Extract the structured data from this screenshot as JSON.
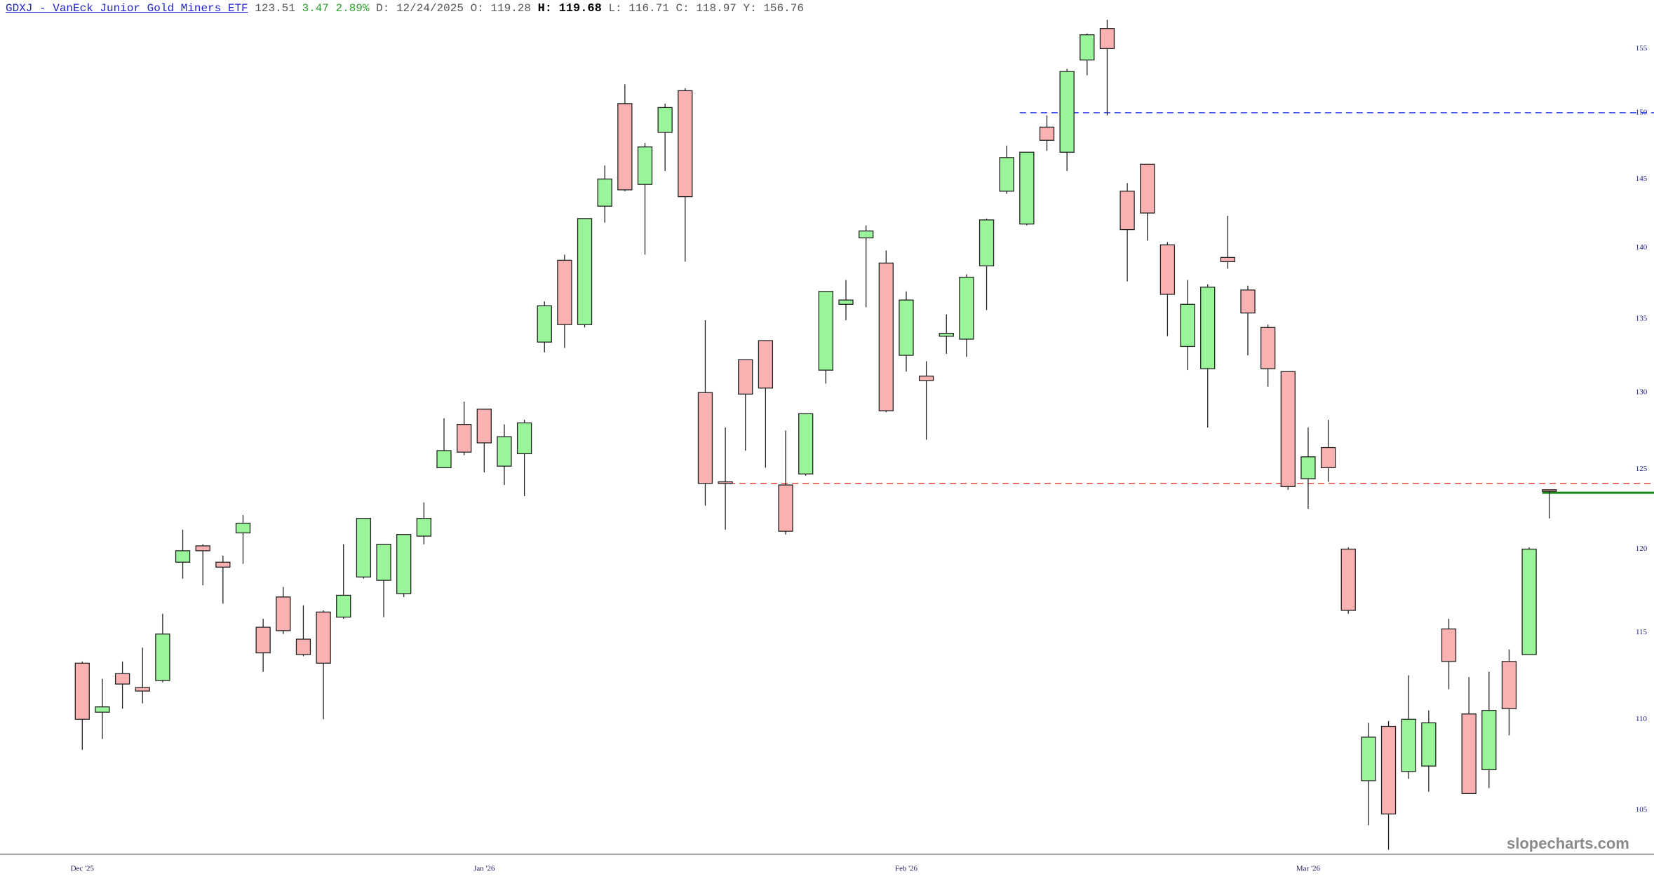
{
  "header": {
    "symbol": "GDXJ - VanEck Junior Gold Miners ETF",
    "last": "123.51",
    "change": "3.47",
    "change_pct": "2.89%",
    "fields": [
      {
        "label": "D:",
        "value": "12/24/2025"
      },
      {
        "label": "O:",
        "value": "119.28"
      },
      {
        "label": "H:",
        "value": "119.68",
        "bold": true
      },
      {
        "label": "L:",
        "value": "116.71"
      },
      {
        "label": "C:",
        "value": "118.97"
      },
      {
        "label": "Y:",
        "value": "156.76"
      }
    ]
  },
  "watermark": "slopecharts.com",
  "chart_data": {
    "type": "candlestick",
    "categories": [
      "Dec '25",
      null,
      null,
      null,
      null,
      null,
      null,
      null,
      null,
      null,
      null,
      null,
      null,
      null,
      null,
      null,
      null,
      null,
      null,
      null,
      "Jan '26",
      null,
      null,
      null,
      null,
      null,
      null,
      null,
      null,
      null,
      null,
      null,
      null,
      null,
      null,
      null,
      null,
      null,
      null,
      null,
      null,
      "Feb '26",
      null,
      null,
      null,
      null,
      null,
      null,
      null,
      null,
      null,
      null,
      null,
      null,
      null,
      null,
      null,
      null,
      null,
      null,
      null,
      "Mar '26",
      null,
      null,
      null,
      null,
      null,
      null,
      null,
      null,
      null,
      null,
      null,
      null
    ],
    "open": [
      113.2,
      110.4,
      112.6,
      111.8,
      112.2,
      119.2,
      120.2,
      119.2,
      121.0,
      115.3,
      117.1,
      114.6,
      116.2,
      115.9,
      118.3,
      118.1,
      117.3,
      120.8,
      125.1,
      127.9,
      128.9,
      125.2,
      126.0,
      133.4,
      139.1,
      134.6,
      143.0,
      150.7,
      144.6,
      148.5,
      151.7,
      130.0,
      124.2,
      132.2,
      133.5,
      124.0,
      124.7,
      131.5,
      136.0,
      140.7,
      138.9,
      132.5,
      131.1,
      133.8,
      133.6,
      138.7,
      144.1,
      141.7,
      148.9,
      147.0,
      154.1,
      156.6,
      144.1,
      146.1,
      140.2,
      133.1,
      131.6,
      139.3,
      137.0,
      134.4,
      131.4,
      124.4,
      126.4,
      120.0,
      106.6,
      109.6,
      107.1,
      107.4,
      115.2,
      110.3,
      107.2,
      113.3,
      113.7,
      123.7
    ],
    "high": [
      113.3,
      112.3,
      113.3,
      114.1,
      116.1,
      121.2,
      120.3,
      119.6,
      122.1,
      115.8,
      117.7,
      116.6,
      116.3,
      120.3,
      121.9,
      120.3,
      120.9,
      122.9,
      128.3,
      129.4,
      128.9,
      127.9,
      128.2,
      136.2,
      139.5,
      142.1,
      146.0,
      152.2,
      147.7,
      150.7,
      151.9,
      134.9,
      127.7,
      132.2,
      133.5,
      127.5,
      128.6,
      136.9,
      137.7,
      141.6,
      139.8,
      136.9,
      132.1,
      135.3,
      138.1,
      142.1,
      147.5,
      147.0,
      149.8,
      153.4,
      156.2,
      157.3,
      144.7,
      146.1,
      140.4,
      137.7,
      137.4,
      142.3,
      137.3,
      134.6,
      131.4,
      127.7,
      128.2,
      120.1,
      109.8,
      109.9,
      112.5,
      110.5,
      115.8,
      112.4,
      112.7,
      114.0,
      120.1,
      123.7
    ],
    "low": [
      108.3,
      108.9,
      110.6,
      110.9,
      112.1,
      118.2,
      117.8,
      116.7,
      119.1,
      112.7,
      114.9,
      113.6,
      110.0,
      115.8,
      118.2,
      115.9,
      117.1,
      120.3,
      125.1,
      125.9,
      124.8,
      124.0,
      123.3,
      132.7,
      133.0,
      134.4,
      141.8,
      144.1,
      139.5,
      145.6,
      139.0,
      122.7,
      121.2,
      126.2,
      125.1,
      120.9,
      124.6,
      130.6,
      134.9,
      135.8,
      128.7,
      131.4,
      126.9,
      132.6,
      132.4,
      135.6,
      143.9,
      141.6,
      147.1,
      145.6,
      152.9,
      149.8,
      137.6,
      140.5,
      133.8,
      131.5,
      127.7,
      138.5,
      132.5,
      130.4,
      123.7,
      122.5,
      124.2,
      116.1,
      104.2,
      102.9,
      106.7,
      106.0,
      111.7,
      105.9,
      106.2,
      109.1,
      113.7,
      121.9
    ],
    "close": [
      110.0,
      110.7,
      112.0,
      111.6,
      114.9,
      119.9,
      119.9,
      118.9,
      121.6,
      113.8,
      115.1,
      113.7,
      113.2,
      117.2,
      121.9,
      120.3,
      120.9,
      121.9,
      126.2,
      126.1,
      126.7,
      127.1,
      128.0,
      135.9,
      134.6,
      142.1,
      145.0,
      144.2,
      147.4,
      150.4,
      143.7,
      124.1,
      124.1,
      129.9,
      130.3,
      121.1,
      128.6,
      136.9,
      136.3,
      141.2,
      128.8,
      136.3,
      130.8,
      134.0,
      137.9,
      142.0,
      146.6,
      147.0,
      147.9,
      153.2,
      156.1,
      155.0,
      141.3,
      142.5,
      136.7,
      136.0,
      137.2,
      139.0,
      135.4,
      131.6,
      123.9,
      125.8,
      125.1,
      116.3,
      109.0,
      104.8,
      110.0,
      109.8,
      113.3,
      105.9,
      110.5,
      110.6,
      120.0,
      123.6
    ],
    "up_color": "#9af59a",
    "down_color": "#f9b1b1",
    "log_scale": true,
    "ylim": [
      102.7,
      158.9
    ],
    "yticks": [
      105,
      110,
      115,
      120,
      125,
      130,
      135,
      140,
      145,
      150,
      155
    ],
    "hlines": [
      {
        "value": 150,
        "color": "#3344ee",
        "dashed": true,
        "from": 47
      },
      {
        "value": 124.1,
        "color": "#ee4444",
        "dashed": true,
        "from": 32
      },
      {
        "value": 123.51,
        "color": "#118811",
        "dashed": false,
        "from": 73
      }
    ]
  }
}
